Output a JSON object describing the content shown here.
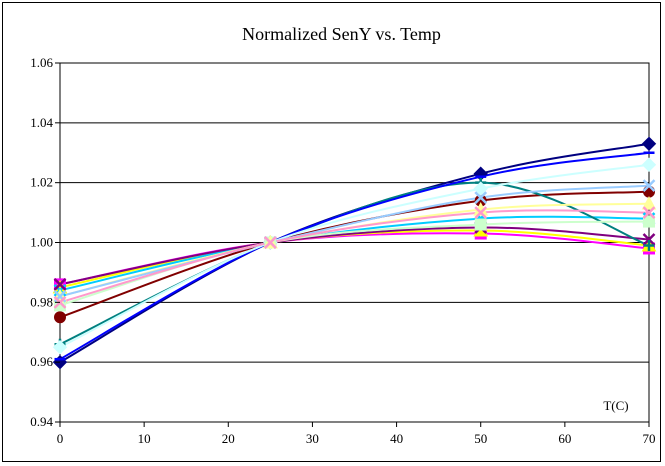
{
  "chart_data": {
    "type": "line",
    "title": "Normalized SenY vs. Temp",
    "xlabel": "T(C)",
    "ylabel": "",
    "xlim": [
      0,
      70
    ],
    "ylim": [
      0.94,
      1.06
    ],
    "x_ticks": [
      0,
      10,
      20,
      30,
      40,
      50,
      60,
      70
    ],
    "y_ticks": [
      0.94,
      0.96,
      0.98,
      1.0,
      1.02,
      1.04,
      1.06
    ],
    "y_tick_labels": [
      "0.94",
      "0.96",
      "0.98",
      "1.00",
      "1.02",
      "1.04",
      "1.06"
    ],
    "grid": "horizontal",
    "background": "#ffffff",
    "series": [
      {
        "x": [
          0,
          25,
          50,
          70
        ],
        "values": [
          0.96,
          1.0,
          1.023,
          1.033
        ],
        "color": "#000080",
        "marker": "diamond"
      },
      {
        "x": [
          0,
          25,
          50,
          70
        ],
        "values": [
          0.986,
          1.0,
          1.003,
          0.998
        ],
        "color": "#ff00ff",
        "marker": "square"
      },
      {
        "x": [
          0,
          25,
          50,
          70
        ],
        "values": [
          0.985,
          1.0,
          1.004,
          0.999
        ],
        "color": "#ffff00",
        "marker": "triangle"
      },
      {
        "x": [
          0,
          25,
          50,
          70
        ],
        "values": [
          0.984,
          1.0,
          1.008,
          1.008
        ],
        "color": "#00ccff",
        "marker": "x"
      },
      {
        "x": [
          0,
          25,
          50,
          70
        ],
        "values": [
          0.986,
          1.0,
          1.005,
          1.001
        ],
        "color": "#800080",
        "marker": "x"
      },
      {
        "x": [
          0,
          25,
          50,
          70
        ],
        "values": [
          0.975,
          1.0,
          1.014,
          1.017
        ],
        "color": "#800000",
        "marker": "circle"
      },
      {
        "x": [
          0,
          25,
          50,
          70
        ],
        "values": [
          0.966,
          1.0,
          1.02,
          0.999
        ],
        "color": "#008080",
        "marker": "plus"
      },
      {
        "x": [
          0,
          25,
          50,
          70
        ],
        "values": [
          0.961,
          1.0,
          1.022,
          1.03
        ],
        "color": "#0000ff",
        "marker": "line"
      },
      {
        "x": [
          0,
          25,
          50,
          70
        ],
        "values": [
          0.965,
          1.0,
          1.018,
          1.026
        ],
        "color": "#ccffff",
        "marker": "diamond"
      },
      {
        "x": [
          0,
          25,
          50,
          70
        ],
        "values": [
          0.979,
          1.0,
          1.006,
          1.007
        ],
        "color": "#ccffcc",
        "marker": "square"
      },
      {
        "x": [
          0,
          25,
          50,
          70
        ],
        "values": [
          0.982,
          1.0,
          1.011,
          1.013
        ],
        "color": "#ffff99",
        "marker": "triangle"
      },
      {
        "x": [
          0,
          25,
          50,
          70
        ],
        "values": [
          0.982,
          1.0,
          1.015,
          1.019
        ],
        "color": "#99ccff",
        "marker": "x"
      },
      {
        "x": [
          0,
          25,
          50,
          70
        ],
        "values": [
          0.98,
          1.0,
          1.01,
          1.01
        ],
        "color": "#ff99cc",
        "marker": "x"
      }
    ]
  }
}
